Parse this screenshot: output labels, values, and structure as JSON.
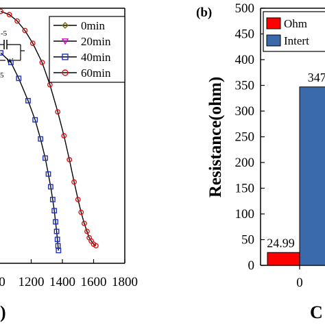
{
  "chart_data": [
    {
      "type": "line",
      "xlabel": "",
      "x_ticks": [
        1200,
        1400,
        1600,
        1800
      ],
      "x_tick_partial": "0",
      "bottom_fragment": ")",
      "circuit_labels": {
        "top": "-5",
        "right": "W",
        "bottom": "5"
      },
      "legend": {
        "placement": "top-right",
        "entries": [
          {
            "label": "0min",
            "marker": "diamond",
            "color": "#7a6a00"
          },
          {
            "label": "20min",
            "marker": "triangle",
            "color": "#d000d0"
          },
          {
            "label": "40min",
            "marker": "square",
            "color": "#1c2fbf"
          },
          {
            "label": "60min",
            "marker": "circle",
            "color": "#e01010"
          }
        ]
      },
      "series": [
        {
          "name": "40min",
          "marker": "square",
          "color": "#1c2fbf",
          "points": [
            [
              1005,
              292
            ],
            [
              1070,
              286
            ],
            [
              1120,
              276
            ],
            [
              1180,
              262
            ],
            [
              1225,
              250
            ],
            [
              1260,
              238
            ],
            [
              1290,
              226
            ],
            [
              1310,
              216
            ],
            [
              1325,
              208
            ],
            [
              1338,
              200
            ],
            [
              1348,
              193
            ],
            [
              1356,
              186
            ],
            [
              1363,
              180
            ],
            [
              1368,
              175
            ],
            [
              1372,
              171
            ],
            [
              1375,
              168
            ]
          ]
        },
        {
          "name": "60min",
          "marker": "circle",
          "color": "#e01010",
          "points": [
            [
              1005,
              318
            ],
            [
              1060,
              316
            ],
            [
              1110,
              312
            ],
            [
              1160,
              306
            ],
            [
              1210,
              298
            ],
            [
              1270,
              286
            ],
            [
              1320,
              272
            ],
            [
              1370,
              255
            ],
            [
              1410,
              240
            ],
            [
              1445,
              225
            ],
            [
              1475,
              211
            ],
            [
              1500,
              200
            ],
            [
              1520,
              192
            ],
            [
              1540,
              185
            ],
            [
              1558,
              180
            ],
            [
              1572,
              176
            ],
            [
              1585,
              174
            ],
            [
              1600,
              172
            ],
            [
              1615,
              171
            ]
          ]
        }
      ],
      "xlim": [
        1000,
        1800
      ],
      "ylim": [
        160,
        320
      ]
    },
    {
      "type": "bar",
      "panel_label": "(b)",
      "ylabel": "Resistance(ohm)",
      "ylim": [
        0,
        500
      ],
      "y_ticks": [
        0,
        50,
        100,
        150,
        200,
        250,
        300,
        350,
        400,
        450,
        500
      ],
      "categories": [
        "0"
      ],
      "series": [
        {
          "name": "Ohm",
          "color": "#ff0000",
          "values": [
            24.99
          ]
        },
        {
          "name": "Intert",
          "color": "#3a6aaa",
          "values": [
            347.0
          ]
        }
      ],
      "data_labels": [
        "24.99",
        "347."
      ],
      "legend": {
        "placement": "top-left"
      },
      "bottom_fragment": "C"
    }
  ]
}
